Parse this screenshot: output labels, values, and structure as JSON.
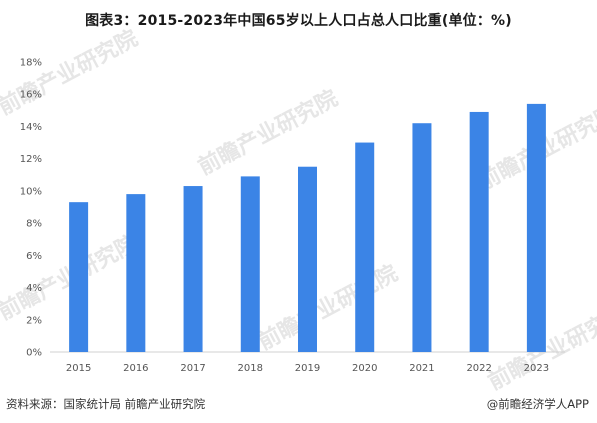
{
  "title": "图表3：2015-2023年中国65岁以上人口占总人口比重(单位：%)",
  "source_left": "资料来源：国家统计局 前瞻产业研究院",
  "source_right": "@前瞻经济学人APP",
  "watermark": "前瞻产业研究院",
  "colors": {
    "bar": "#3b84e6",
    "axis": "#d0d0d0",
    "tick_text": "#555555"
  },
  "chart_data": {
    "type": "bar",
    "title": "图表3：2015-2023年中国65岁以上人口占总人口比重(单位：%)",
    "xlabel": "",
    "ylabel": "",
    "categories": [
      "2015",
      "2016",
      "2017",
      "2018",
      "2019",
      "2020",
      "2021",
      "2022",
      "2023"
    ],
    "values": [
      9.3,
      9.8,
      10.3,
      10.9,
      11.5,
      13.0,
      14.2,
      14.9,
      15.4
    ],
    "ylim": [
      0,
      18
    ],
    "yticks": [
      "0%",
      "2%",
      "4%",
      "6%",
      "8%",
      "10%",
      "12%",
      "14%",
      "16%",
      "18%"
    ],
    "grid": false,
    "legend": "none"
  }
}
